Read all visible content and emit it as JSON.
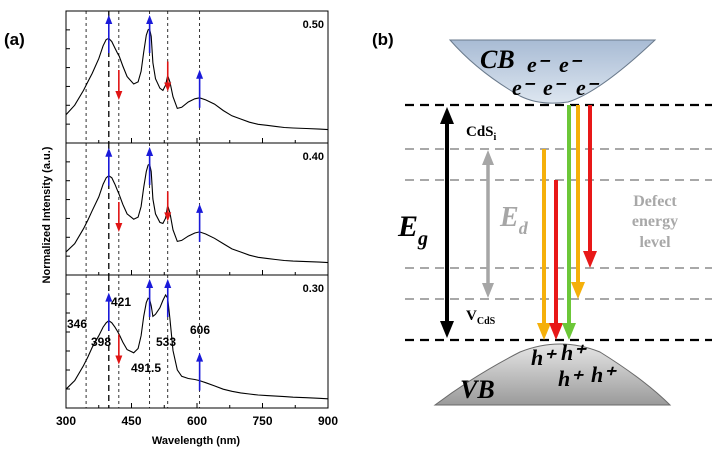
{
  "panel_a": {
    "label": "(a)",
    "chart_data": {
      "type": "line",
      "xlabel": "Wavelength (nm)",
      "ylabel": "Normalized Intensity (a.u.)",
      "xlim": [
        300,
        900
      ],
      "xticks": [
        "300",
        "450",
        "600",
        "750",
        "900"
      ],
      "series": [
        {
          "name": "0.50",
          "label": "0.50",
          "x": [
            300,
            320,
            340,
            350,
            360,
            375,
            385,
            392,
            398,
            405,
            412,
            418,
            422,
            430,
            440,
            455,
            465,
            472,
            478,
            484,
            488,
            491.5,
            495,
            499,
            505,
            515,
            522,
            528,
            533,
            538,
            545,
            555,
            565,
            580,
            595,
            606,
            620,
            640,
            660,
            680,
            700,
            720,
            740,
            760,
            780,
            800,
            820,
            850,
            880,
            900
          ],
          "y": [
            0.21,
            0.3,
            0.44,
            0.52,
            0.6,
            0.74,
            0.86,
            0.92,
            0.93,
            0.9,
            0.84,
            0.79,
            0.76,
            0.67,
            0.57,
            0.5,
            0.52,
            0.62,
            0.8,
            0.96,
            1.01,
            1.02,
            0.95,
            0.7,
            0.55,
            0.46,
            0.44,
            0.49,
            0.58,
            0.52,
            0.38,
            0.27,
            0.28,
            0.33,
            0.36,
            0.37,
            0.35,
            0.31,
            0.25,
            0.2,
            0.17,
            0.14,
            0.12,
            0.11,
            0.1,
            0.09,
            0.085,
            0.08,
            0.075,
            0.07
          ]
        },
        {
          "name": "0.40",
          "label": "0.40",
          "x": [
            300,
            320,
            340,
            350,
            360,
            375,
            385,
            392,
            398,
            405,
            412,
            418,
            422,
            430,
            440,
            455,
            465,
            472,
            478,
            484,
            488,
            491.5,
            495,
            499,
            505,
            515,
            522,
            528,
            533,
            538,
            545,
            555,
            565,
            580,
            595,
            606,
            620,
            640,
            660,
            680,
            700,
            720,
            740,
            760,
            780,
            800,
            820,
            850,
            880,
            900
          ],
          "y": [
            0.16,
            0.24,
            0.38,
            0.46,
            0.55,
            0.68,
            0.8,
            0.86,
            0.88,
            0.86,
            0.8,
            0.74,
            0.7,
            0.61,
            0.52,
            0.47,
            0.49,
            0.59,
            0.77,
            0.92,
            0.98,
            0.99,
            0.92,
            0.66,
            0.52,
            0.44,
            0.43,
            0.48,
            0.6,
            0.53,
            0.37,
            0.26,
            0.27,
            0.31,
            0.34,
            0.35,
            0.33,
            0.29,
            0.24,
            0.19,
            0.16,
            0.13,
            0.11,
            0.1,
            0.09,
            0.08,
            0.075,
            0.07,
            0.065,
            0.06
          ]
        },
        {
          "name": "0.30",
          "label": "0.30",
          "x": [
            300,
            320,
            340,
            350,
            360,
            375,
            385,
            392,
            398,
            405,
            412,
            418,
            422,
            430,
            440,
            455,
            465,
            472,
            478,
            484,
            488,
            491.5,
            495,
            499,
            505,
            515,
            522,
            528,
            533,
            538,
            545,
            555,
            565,
            580,
            595,
            606,
            620,
            640,
            660,
            680,
            700,
            720,
            740,
            760,
            780,
            800,
            820,
            850,
            880,
            900
          ],
          "y": [
            0.12,
            0.2,
            0.34,
            0.42,
            0.51,
            0.62,
            0.7,
            0.74,
            0.76,
            0.74,
            0.7,
            0.66,
            0.63,
            0.56,
            0.49,
            0.46,
            0.5,
            0.62,
            0.8,
            0.93,
            0.97,
            0.96,
            0.9,
            0.8,
            0.82,
            0.88,
            0.95,
            1.0,
            0.97,
            0.78,
            0.48,
            0.3,
            0.24,
            0.22,
            0.21,
            0.2,
            0.18,
            0.15,
            0.12,
            0.1,
            0.085,
            0.075,
            0.065,
            0.06,
            0.055,
            0.05,
            0.045,
            0.04,
            0.035,
            0.03
          ]
        }
      ],
      "reference_lines_nm": [
        346,
        398,
        421,
        491.5,
        533,
        606
      ],
      "peak_labels": [
        "346",
        "398",
        "421",
        "491.5",
        "533",
        "606"
      ],
      "arrows": [
        {
          "panel": "0.50",
          "x": 398,
          "dir": "up",
          "color": "#1a1ad9"
        },
        {
          "panel": "0.50",
          "x": 421,
          "dir": "down",
          "color": "#e01414"
        },
        {
          "panel": "0.50",
          "x": 491.5,
          "dir": "up",
          "color": "#1a1ad9"
        },
        {
          "panel": "0.50",
          "x": 533,
          "dir": "down",
          "color": "#e01414"
        },
        {
          "panel": "0.50",
          "x": 606,
          "dir": "up",
          "color": "#1a1ad9"
        },
        {
          "panel": "0.40",
          "x": 398,
          "dir": "up",
          "color": "#1a1ad9"
        },
        {
          "panel": "0.40",
          "x": 421,
          "dir": "down",
          "color": "#e01414"
        },
        {
          "panel": "0.40",
          "x": 491.5,
          "dir": "up",
          "color": "#1a1ad9"
        },
        {
          "panel": "0.40",
          "x": 533,
          "dir": "down",
          "color": "#e01414"
        },
        {
          "panel": "0.40",
          "x": 606,
          "dir": "up",
          "color": "#1a1ad9"
        },
        {
          "panel": "0.30",
          "x": 398,
          "dir": "up",
          "color": "#1a1ad9"
        },
        {
          "panel": "0.30",
          "x": 421,
          "dir": "down",
          "color": "#e01414"
        },
        {
          "panel": "0.30",
          "x": 491.5,
          "dir": "up",
          "color": "#1a1ad9"
        },
        {
          "panel": "0.30",
          "x": 533,
          "dir": "up",
          "color": "#1a1ad9"
        },
        {
          "panel": "0.30",
          "x": 606,
          "dir": "up",
          "color": "#1a1ad9"
        }
      ]
    }
  },
  "panel_b": {
    "label": "(b)",
    "cb_label": "CB",
    "vb_label": "VB",
    "electrons": [
      "e⁻",
      "e⁻",
      "e⁻",
      "e⁻",
      "e⁻"
    ],
    "holes": [
      "h⁺",
      "h⁺",
      "h⁺",
      "h⁺"
    ],
    "eg_main": "E",
    "eg_sub": "g",
    "ed_main": "E",
    "ed_sub": "d",
    "cds_main": "CdS",
    "cds_sub": "i",
    "vcds_main": "V",
    "vcds_sub": "CdS",
    "defect_lines": [
      "Defect",
      "energy",
      "level"
    ],
    "colors": {
      "red": "#e81818",
      "orange": "#f5b00a",
      "green": "#6cc738",
      "grey_arrow": "#a6a6a6"
    }
  }
}
